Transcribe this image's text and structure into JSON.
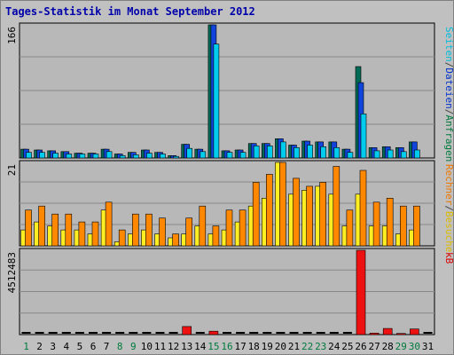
{
  "chart_data": {
    "type": "bar",
    "title": "Tages-Statistik im Monat September 2012",
    "days": [
      "1",
      "2",
      "3",
      "4",
      "5",
      "6",
      "7",
      "8",
      "9",
      "10",
      "11",
      "12",
      "13",
      "14",
      "15",
      "16",
      "17",
      "18",
      "19",
      "20",
      "21",
      "22",
      "23",
      "24",
      "25",
      "26",
      "27",
      "28",
      "29",
      "30",
      "31"
    ],
    "weekend_days": [
      "1",
      "8",
      "9",
      "15",
      "16",
      "22",
      "23",
      "29",
      "30"
    ],
    "weekend_color": "#007a3d",
    "weekday_color": "#000000",
    "panels": [
      {
        "max_label": "166",
        "ylim": [
          0,
          166
        ],
        "side_labels": [
          {
            "text": "Anfragen",
            "color": "#007a3d"
          },
          {
            "text": "/",
            "color": "#444444"
          },
          {
            "text": "Dateien",
            "color": "#0033cc"
          },
          {
            "text": "/",
            "color": "#444444"
          },
          {
            "text": "Seiten",
            "color": "#00bbdd"
          }
        ],
        "series": [
          {
            "name": "Anfragen",
            "color": "#006a55",
            "values": [
              11,
              10,
              9,
              8,
              6,
              6,
              11,
              5,
              7,
              10,
              7,
              3,
              17,
              11,
              166,
              9,
              10,
              18,
              18,
              24,
              16,
              21,
              20,
              20,
              11,
              114,
              13,
              14,
              13,
              20,
              0
            ]
          },
          {
            "name": "Dateien",
            "color": "#1144dd",
            "values": [
              11,
              10,
              9,
              8,
              6,
              6,
              11,
              5,
              7,
              10,
              7,
              3,
              17,
              11,
              166,
              9,
              10,
              18,
              18,
              24,
              16,
              21,
              20,
              20,
              11,
              94,
              13,
              14,
              13,
              20,
              0
            ]
          },
          {
            "name": "Seiten",
            "color": "#00ccee",
            "values": [
              7,
              7,
              6,
              5,
              5,
              5,
              8,
              3,
              4,
              6,
              5,
              2,
              12,
              8,
              142,
              7,
              7,
              15,
              15,
              20,
              13,
              16,
              14,
              13,
              7,
              55,
              9,
              10,
              8,
              10,
              0
            ]
          }
        ]
      },
      {
        "max_label": "21",
        "ylim": [
          0,
          21
        ],
        "side_labels": [
          {
            "text": "Besuche",
            "color": "#ddbb00"
          },
          {
            "text": "/",
            "color": "#444444"
          },
          {
            "text": "Rechner",
            "color": "#ee7700"
          }
        ],
        "series": [
          {
            "name": "Besuche",
            "color": "#ffee22",
            "values": [
              4,
              6,
              5,
              4,
              4,
              3,
              9,
              1,
              3,
              4,
              3,
              2,
              3,
              5,
              3,
              4,
              6,
              10,
              12,
              21,
              13,
              14,
              15,
              13,
              5,
              13,
              5,
              5,
              3,
              4,
              0
            ]
          },
          {
            "name": "Rechner",
            "color": "#ff8800",
            "values": [
              9,
              10,
              8,
              8,
              6,
              6,
              11,
              4,
              8,
              8,
              7,
              3,
              7,
              10,
              5,
              9,
              9,
              16,
              18,
              21,
              17,
              15,
              16,
              20,
              9,
              19,
              11,
              12,
              10,
              10,
              0
            ]
          }
        ]
      },
      {
        "max_label": "4512483",
        "ylim": [
          0,
          4512483
        ],
        "side_labels": [
          {
            "text": "kB",
            "color": "#dd0000"
          }
        ],
        "series": [
          {
            "name": "kB",
            "color": "#ee1111",
            "values": [
              0,
              0,
              0,
              0,
              0,
              0,
              0,
              0,
              0,
              0,
              0,
              0,
              430000,
              0,
              180000,
              0,
              0,
              0,
              0,
              0,
              0,
              0,
              0,
              0,
              0,
              4512483,
              80000,
              330000,
              60000,
              300000,
              0
            ]
          }
        ]
      }
    ]
  }
}
